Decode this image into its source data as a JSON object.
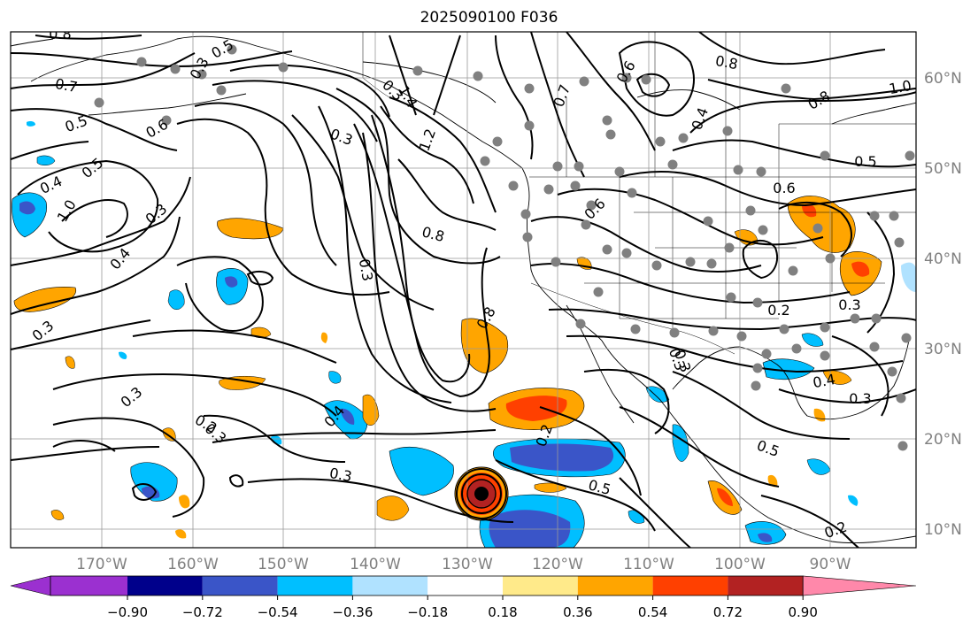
{
  "title": "2025090100 F036",
  "lon_ticks": [
    "170°W",
    "160°W",
    "150°W",
    "140°W",
    "130°W",
    "120°W",
    "110°W",
    "100°W",
    "90°W"
  ],
  "lat_ticks": [
    "60°N",
    "50°N",
    "40°N",
    "30°N",
    "20°N",
    "10°N"
  ],
  "colorbar": {
    "colors": [
      "#9b30d0",
      "#00008b",
      "#3a55c8",
      "#00bfff",
      "#b0e2ff",
      "#ffffff",
      "#ffea8a",
      "#ffa500",
      "#ff4000",
      "#b22222",
      "#ff88aa"
    ],
    "tick_labels": [
      "−0.90",
      "−0.72",
      "−0.54",
      "−0.36",
      "−0.18",
      "0.18",
      "0.36",
      "0.54",
      "0.72",
      "0.90"
    ]
  },
  "contour_labels": [
    "0.8",
    "0.7",
    "0.5",
    "0.6",
    "0.4",
    "0.5",
    "1.0",
    "0.3",
    "0.3",
    "1.4",
    "1.2",
    "0.3",
    "0.8",
    "0.3",
    "0.8",
    "0.3",
    "0.4",
    "0.3",
    "0.5",
    "0.3",
    "0.2",
    "0.2",
    "0.5",
    "0.8",
    "1.0",
    "0.4",
    "0.8",
    "0.6",
    "0.5",
    "0.6",
    "0.4",
    "0.3",
    "0.2",
    "0.4",
    "0.6",
    "0.5",
    "0.7",
    "0.3",
    "0.3"
  ],
  "colors": {
    "axis": "#000000",
    "grid": "#999999",
    "tick_text": "#808080",
    "station": "#808080"
  }
}
